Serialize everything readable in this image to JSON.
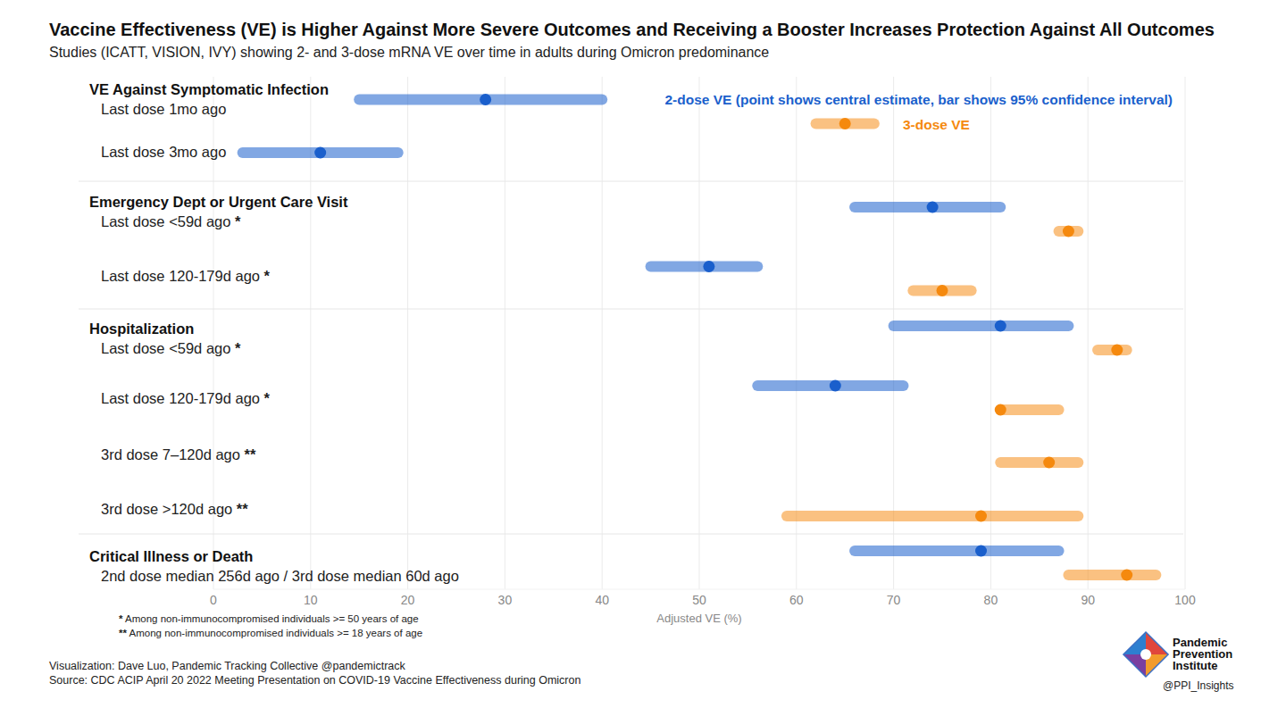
{
  "chart_data": {
    "type": "dot",
    "orientation": "horizontal",
    "title": "Vaccine Effectiveness (VE) is Higher Against More Severe Outcomes and Receiving a Booster Increases Protection Against All Outcomes",
    "subtitle": "Studies (ICATT, VISION, IVY) showing 2- and 3-dose mRNA VE over time in adults during Omicron predominance",
    "x_label": "Adjusted VE (%)",
    "xlim": [
      0,
      100
    ],
    "xticks": [
      0,
      10,
      20,
      30,
      40,
      50,
      60,
      70,
      80,
      90,
      100
    ],
    "grid": true,
    "legend": "top-right",
    "groups": [
      {
        "label": "VE Against Symptomatic Infection",
        "categories": [
          "Last dose 1mo ago",
          "Last dose 3mo ago"
        ]
      },
      {
        "label": "Emergency Dept or Urgent Care Visit",
        "categories": [
          "Last dose <59d ago *",
          "Last dose 120-179d ago *"
        ]
      },
      {
        "label": "Hospitalization",
        "categories": [
          "Last dose <59d ago *",
          "Last dose 120-179d ago *",
          "3rd dose 7–120d ago **",
          "3rd dose >120d ago **"
        ]
      },
      {
        "label": "Critical Illness or Death",
        "categories": [
          "2nd dose median 256d ago / 3rd dose median 60d ago"
        ]
      }
    ],
    "series": [
      {
        "name": "2-dose VE (point shows central estimate, bar shows 95% confidence interval)",
        "color": "#1a5fcc",
        "values": [
          28,
          11,
          74,
          51,
          81,
          64,
          null,
          null,
          79
        ],
        "ci_low": [
          15,
          3,
          66,
          45,
          70,
          56,
          null,
          null,
          66
        ],
        "ci_high": [
          40,
          19,
          81,
          56,
          88,
          71,
          null,
          null,
          87
        ]
      },
      {
        "name": "3-dose VE",
        "color": "#f5890e",
        "values": [
          65,
          null,
          88,
          75,
          93,
          81,
          86,
          79,
          94
        ],
        "ci_low": [
          62,
          null,
          87,
          72,
          91,
          81,
          81,
          59,
          88
        ],
        "ci_high": [
          68,
          null,
          89,
          78,
          94,
          87,
          89,
          89,
          97
        ]
      }
    ],
    "footnotes": [
      "* Among non-immunocompromised individuals >= 50 years of age",
      "** Among non-immunocompromised individuals >= 18 years of age"
    ],
    "credits": [
      "Visualization: Dave Luo, Pandemic Tracking Collective @pandemictrack",
      "Source: CDC ACIP April 20 2022 Meeting Presentation on COVID-19 Vaccine Effectiveness during Omicron"
    ],
    "logo": {
      "lines": [
        "Pandemic",
        "Prevention",
        "Institute"
      ],
      "handle": "@PPI_Insights"
    }
  }
}
